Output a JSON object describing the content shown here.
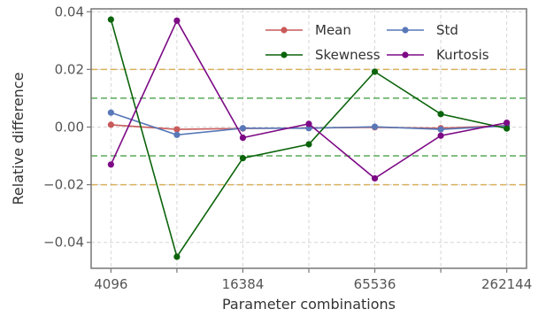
{
  "chart_data": {
    "type": "line",
    "xlabel": "Parameter combinations",
    "ylabel": "Relative difference",
    "x": [
      4096,
      8192,
      16384,
      32768,
      65536,
      131072,
      262144
    ],
    "x_scale": "log2",
    "xticks": [
      4096,
      16384,
      65536,
      262144
    ],
    "xtick_labels": [
      "4096",
      "16384",
      "65536",
      "262144"
    ],
    "ylim": [
      -0.049,
      0.041
    ],
    "yticks": [
      -0.04,
      -0.02,
      0.0,
      0.02,
      0.04
    ],
    "ytick_labels": [
      "−0.04",
      "−0.02",
      "0.00",
      "0.02",
      "0.04"
    ],
    "grid": true,
    "legend_position": "top-right",
    "series": [
      {
        "name": "Mean",
        "color": "#c95a5a",
        "values": [
          0.0008,
          -0.0008,
          -0.0005,
          -0.0003,
          -0.0001,
          -0.0004,
          0.0005
        ]
      },
      {
        "name": "Std",
        "color": "#5878b8",
        "values": [
          0.005,
          -0.0027,
          -0.0004,
          -0.0004,
          0.0001,
          -0.0008,
          0.0004
        ]
      },
      {
        "name": "Skewness",
        "color": "#0b640b",
        "values": [
          0.0373,
          -0.045,
          -0.0108,
          -0.006,
          0.0192,
          0.0045,
          -0.0005
        ]
      },
      {
        "name": "Kurtosis",
        "color": "#7d0a85",
        "values": [
          -0.013,
          0.0369,
          -0.0037,
          0.0011,
          -0.0178,
          -0.003,
          0.0015
        ]
      }
    ],
    "reference_lines": [
      {
        "y": 0.02,
        "color": "#d9b15c",
        "style": "dashed"
      },
      {
        "y": -0.02,
        "color": "#d9b15c",
        "style": "dashed"
      },
      {
        "y": 0.01,
        "color": "#5aaa5a",
        "style": "dashed"
      },
      {
        "y": -0.01,
        "color": "#5aaa5a",
        "style": "dashed"
      }
    ]
  }
}
